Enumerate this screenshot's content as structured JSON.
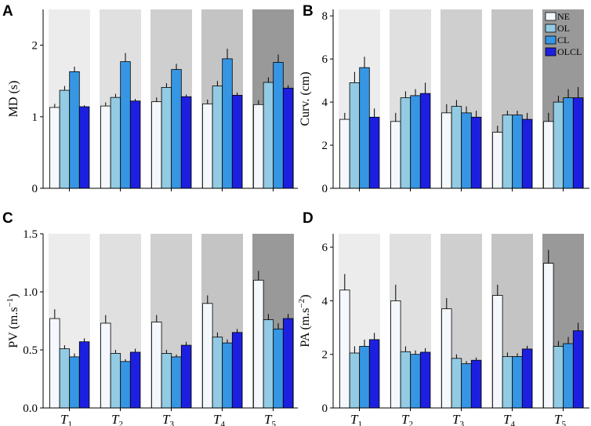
{
  "figure": {
    "legend": [
      {
        "key": "NE",
        "label": "NE",
        "color": "#f4f8fc"
      },
      {
        "key": "OL",
        "label": "OL",
        "color": "#92cbe3"
      },
      {
        "key": "CL",
        "label": "CL",
        "color": "#3696e4"
      },
      {
        "key": "OLCL",
        "label": "OLCL",
        "color": "#1d1fe0"
      }
    ],
    "shades": [
      "#ececec",
      "#e0e0e0",
      "#cfcfcf",
      "#c4c4c4",
      "#999999"
    ]
  },
  "chart_data": [
    {
      "panel": "A",
      "type": "bar",
      "ylabel": "MD (s)",
      "ylim": [
        0,
        2.5
      ],
      "yticks": [
        0,
        1,
        2
      ],
      "ytick_labels": [
        "0",
        "1",
        "2"
      ],
      "categories": [
        "1",
        "2",
        "3",
        "4",
        "5"
      ],
      "category_prefix": "T",
      "show_xlabels": false,
      "legend": false,
      "shade_groups": [
        0,
        1,
        2,
        3,
        4
      ],
      "series": [
        {
          "name": "NE",
          "values": [
            1.13,
            1.15,
            1.21,
            1.18,
            1.17
          ],
          "errors": [
            0.05,
            0.05,
            0.06,
            0.06,
            0.06
          ]
        },
        {
          "name": "OL",
          "values": [
            1.37,
            1.27,
            1.41,
            1.43,
            1.48
          ],
          "errors": [
            0.06,
            0.05,
            0.06,
            0.07,
            0.07
          ]
        },
        {
          "name": "CL",
          "values": [
            1.63,
            1.77,
            1.66,
            1.81,
            1.76
          ],
          "errors": [
            0.07,
            0.12,
            0.08,
            0.14,
            0.11
          ]
        },
        {
          "name": "OLCL",
          "values": [
            1.14,
            1.22,
            1.28,
            1.3,
            1.4
          ],
          "errors": [
            0.02,
            0.03,
            0.03,
            0.04,
            0.04
          ]
        }
      ]
    },
    {
      "panel": "B",
      "type": "bar",
      "ylabel": "Curv. (cm)",
      "ylim": [
        0,
        8.3
      ],
      "yticks": [
        0,
        2,
        4,
        6,
        8
      ],
      "ytick_labels": [
        "0",
        "2",
        "4",
        "6",
        "8"
      ],
      "categories": [
        "1",
        "2",
        "3",
        "4",
        "5"
      ],
      "category_prefix": "T",
      "show_xlabels": false,
      "legend": true,
      "shade_groups": [
        0,
        1,
        2,
        3,
        4
      ],
      "series": [
        {
          "name": "NE",
          "values": [
            3.2,
            3.1,
            3.5,
            2.6,
            3.1
          ],
          "errors": [
            0.3,
            0.4,
            0.4,
            0.3,
            0.4
          ]
        },
        {
          "name": "OL",
          "values": [
            4.9,
            4.2,
            3.8,
            3.4,
            4.0
          ],
          "errors": [
            0.5,
            0.3,
            0.3,
            0.2,
            0.3
          ]
        },
        {
          "name": "CL",
          "values": [
            5.6,
            4.3,
            3.5,
            3.4,
            4.2
          ],
          "errors": [
            0.5,
            0.3,
            0.3,
            0.2,
            0.4
          ]
        },
        {
          "name": "OLCL",
          "values": [
            3.3,
            4.4,
            3.3,
            3.2,
            4.2
          ],
          "errors": [
            0.4,
            0.5,
            0.3,
            0.3,
            0.5
          ]
        }
      ]
    },
    {
      "panel": "C",
      "type": "bar",
      "ylabel": "PV (m.s⁻¹)",
      "ylim": [
        0,
        1.5
      ],
      "yticks": [
        0,
        0.5,
        1.0,
        1.5
      ],
      "ytick_labels": [
        "0.0",
        "0.5",
        "1.0",
        "1.5"
      ],
      "categories": [
        "1",
        "2",
        "3",
        "4",
        "5"
      ],
      "category_prefix": "T",
      "show_xlabels": true,
      "legend": false,
      "shade_groups": [
        0,
        1,
        2,
        3,
        4
      ],
      "series": [
        {
          "name": "NE",
          "values": [
            0.77,
            0.73,
            0.74,
            0.9,
            1.1
          ],
          "errors": [
            0.08,
            0.07,
            0.06,
            0.07,
            0.08
          ]
        },
        {
          "name": "OL",
          "values": [
            0.51,
            0.47,
            0.47,
            0.61,
            0.76
          ],
          "errors": [
            0.03,
            0.03,
            0.03,
            0.04,
            0.05
          ]
        },
        {
          "name": "CL",
          "values": [
            0.44,
            0.4,
            0.44,
            0.56,
            0.68
          ],
          "errors": [
            0.03,
            0.02,
            0.02,
            0.03,
            0.05
          ]
        },
        {
          "name": "OLCL",
          "values": [
            0.57,
            0.48,
            0.54,
            0.65,
            0.77
          ],
          "errors": [
            0.03,
            0.03,
            0.03,
            0.03,
            0.04
          ]
        }
      ]
    },
    {
      "panel": "D",
      "type": "bar",
      "ylabel": "PA (m.s⁻²)",
      "ylim": [
        0,
        6.5
      ],
      "yticks": [
        0,
        2,
        4,
        6
      ],
      "ytick_labels": [
        "0",
        "2",
        "4",
        "6"
      ],
      "categories": [
        "1",
        "2",
        "3",
        "4",
        "5"
      ],
      "category_prefix": "T",
      "show_xlabels": true,
      "legend": false,
      "shade_groups": [
        0,
        1,
        2,
        3,
        4
      ],
      "series": [
        {
          "name": "NE",
          "values": [
            4.4,
            4.0,
            3.7,
            4.2,
            5.4
          ],
          "errors": [
            0.6,
            0.6,
            0.4,
            0.4,
            0.5
          ]
        },
        {
          "name": "OL",
          "values": [
            2.05,
            2.1,
            1.85,
            1.92,
            2.3
          ],
          "errors": [
            0.25,
            0.2,
            0.15,
            0.15,
            0.2
          ]
        },
        {
          "name": "CL",
          "values": [
            2.3,
            2.0,
            1.65,
            1.92,
            2.4
          ],
          "errors": [
            0.25,
            0.15,
            0.1,
            0.12,
            0.25
          ]
        },
        {
          "name": "OLCL",
          "values": [
            2.55,
            2.08,
            1.78,
            2.2,
            2.88
          ],
          "errors": [
            0.25,
            0.15,
            0.1,
            0.12,
            0.3
          ]
        }
      ]
    }
  ]
}
